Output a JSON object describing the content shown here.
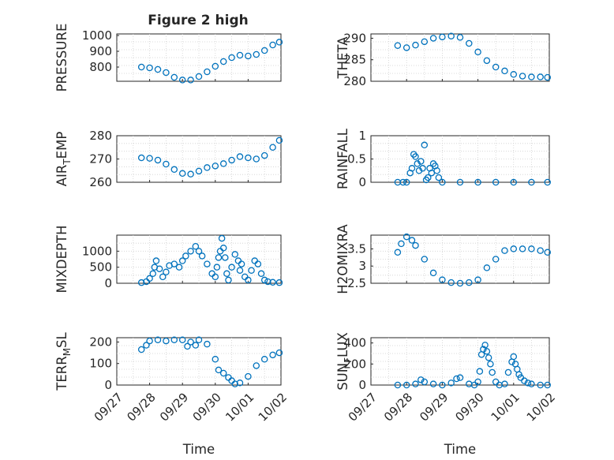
{
  "figure": {
    "title": "Figure 2 high"
  },
  "colors": {
    "marker": "#0072BD",
    "axis": "#262626",
    "grid": "#d9d9d9",
    "background": "#ffffff"
  },
  "chart_data": [
    {
      "type": "scatter",
      "id": "pressure",
      "title": "Figure 2 high",
      "xlabel": "",
      "ylabel": "PRESSURE",
      "xlim": [
        0,
        5
      ],
      "ylim": [
        710,
        1010
      ],
      "yticks": [
        800,
        900,
        1000
      ],
      "ytick_labels": [
        "800",
        "900",
        "1000"
      ],
      "xtick_labels": [],
      "x": [
        0.75,
        1.0,
        1.25,
        1.5,
        1.75,
        2.0,
        2.25,
        2.5,
        2.75,
        3.0,
        3.25,
        3.5,
        3.75,
        4.0,
        4.25,
        4.5,
        4.75,
        4.95
      ],
      "y": [
        800,
        795,
        785,
        765,
        735,
        718,
        718,
        740,
        770,
        805,
        835,
        860,
        875,
        870,
        880,
        905,
        940,
        958
      ]
    },
    {
      "type": "scatter",
      "id": "theta",
      "xlabel": "",
      "ylabel": "THETA",
      "xlim": [
        0,
        5
      ],
      "ylim": [
        280,
        291
      ],
      "yticks": [
        280,
        285,
        290
      ],
      "ytick_labels": [
        "280",
        "285",
        "290"
      ],
      "xtick_labels": [],
      "x": [
        0.75,
        1.0,
        1.25,
        1.5,
        1.75,
        2.0,
        2.25,
        2.5,
        2.75,
        3.0,
        3.25,
        3.5,
        3.75,
        4.0,
        4.25,
        4.5,
        4.75,
        4.95
      ],
      "y": [
        288.3,
        287.8,
        288.4,
        289.2,
        290.0,
        290.3,
        290.5,
        290.2,
        288.8,
        286.8,
        284.8,
        283.3,
        282.4,
        281.6,
        281.2,
        281.0,
        281.0,
        280.9
      ]
    },
    {
      "type": "scatter",
      "id": "air_temp",
      "xlabel": "",
      "ylabel": "AIR_TEMP",
      "ylabel_display": {
        "main": "AIR",
        "sub": "T",
        "rest": "EMP"
      },
      "xlim": [
        0,
        5
      ],
      "ylim": [
        260,
        280
      ],
      "yticks": [
        260,
        270,
        280
      ],
      "ytick_labels": [
        "260",
        "270",
        "280"
      ],
      "xtick_labels": [],
      "x": [
        0.75,
        1.0,
        1.25,
        1.5,
        1.75,
        2.0,
        2.25,
        2.5,
        2.75,
        3.0,
        3.25,
        3.5,
        3.75,
        4.0,
        4.25,
        4.5,
        4.75,
        4.95
      ],
      "y": [
        270.5,
        270.3,
        269.5,
        267.8,
        265.5,
        263.8,
        263.5,
        264.8,
        266.3,
        267.0,
        268.0,
        269.5,
        271.0,
        270.5,
        270.0,
        271.5,
        275.0,
        278.0
      ]
    },
    {
      "type": "scatter",
      "id": "rainfall",
      "xlabel": "",
      "ylabel": "RAINFALL",
      "xlim": [
        0,
        5
      ],
      "ylim": [
        0,
        1
      ],
      "yticks": [
        0,
        0.5,
        1
      ],
      "ytick_labels": [
        "0",
        "0.5",
        "1"
      ],
      "xtick_labels": [],
      "x": [
        0.75,
        0.9,
        1.0,
        1.1,
        1.15,
        1.2,
        1.25,
        1.3,
        1.35,
        1.4,
        1.45,
        1.5,
        1.55,
        1.6,
        1.65,
        1.7,
        1.75,
        1.8,
        1.85,
        1.9,
        2.0,
        2.5,
        3.0,
        3.5,
        4.0,
        4.5,
        4.95
      ],
      "y": [
        0,
        0,
        0,
        0.2,
        0.3,
        0.6,
        0.55,
        0.4,
        0.25,
        0.45,
        0.3,
        0.8,
        0.05,
        0.1,
        0.3,
        0.2,
        0.4,
        0.35,
        0.25,
        0.1,
        0,
        0,
        0,
        0,
        0,
        0,
        0
      ]
    },
    {
      "type": "scatter",
      "id": "mixdepth",
      "xlabel": "",
      "ylabel": "MIXDEPTH",
      "xlim": [
        0,
        5
      ],
      "ylim": [
        0,
        1500
      ],
      "yticks": [
        0,
        500,
        1000
      ],
      "ytick_labels": [
        "0",
        "500",
        "1000"
      ],
      "xtick_labels": [],
      "x": [
        0.75,
        0.9,
        1.0,
        1.1,
        1.15,
        1.2,
        1.3,
        1.4,
        1.5,
        1.6,
        1.75,
        1.9,
        2.0,
        2.1,
        2.25,
        2.4,
        2.5,
        2.6,
        2.75,
        2.9,
        3.0,
        3.05,
        3.1,
        3.15,
        3.2,
        3.25,
        3.3,
        3.35,
        3.4,
        3.5,
        3.6,
        3.7,
        3.75,
        3.8,
        3.9,
        4.0,
        4.1,
        4.2,
        4.3,
        4.4,
        4.5,
        4.6,
        4.75,
        4.95
      ],
      "y": [
        20,
        50,
        150,
        300,
        500,
        700,
        450,
        200,
        350,
        550,
        600,
        500,
        700,
        850,
        1000,
        1150,
        1000,
        850,
        600,
        300,
        200,
        500,
        800,
        1000,
        1400,
        1100,
        800,
        300,
        100,
        500,
        900,
        700,
        400,
        600,
        200,
        100,
        400,
        700,
        600,
        300,
        100,
        50,
        30,
        20
      ]
    },
    {
      "type": "scatter",
      "id": "h2omixra",
      "xlabel": "",
      "ylabel": "H2OMIXRA",
      "xlim": [
        0,
        5
      ],
      "ylim": [
        2.5,
        3.9
      ],
      "yticks": [
        2.5,
        3,
        3.5
      ],
      "ytick_labels": [
        "2.5",
        "3",
        "3.5"
      ],
      "xtick_labels": [],
      "x": [
        0.75,
        0.85,
        1.0,
        1.15,
        1.25,
        1.5,
        1.75,
        2.0,
        2.25,
        2.5,
        2.75,
        3.0,
        3.25,
        3.5,
        3.75,
        4.0,
        4.25,
        4.5,
        4.75,
        4.95
      ],
      "y": [
        3.4,
        3.65,
        3.85,
        3.75,
        3.6,
        3.2,
        2.8,
        2.6,
        2.52,
        2.5,
        2.52,
        2.6,
        2.95,
        3.2,
        3.45,
        3.5,
        3.5,
        3.5,
        3.45,
        3.4
      ]
    },
    {
      "type": "scatter",
      "id": "terr_msl",
      "xlabel": "Time",
      "ylabel": "TERR_MSL",
      "ylabel_display": {
        "main": "TERR",
        "sub": "M",
        "rest": "SL"
      },
      "xlim": [
        0,
        5
      ],
      "ylim": [
        0,
        220
      ],
      "yticks": [
        0,
        100,
        200
      ],
      "ytick_labels": [
        "0",
        "100",
        "200"
      ],
      "xtick_labels": [
        "09/27",
        "09/28",
        "09/29",
        "09/30",
        "10/01",
        "10/02"
      ],
      "x": [
        0.75,
        0.9,
        1.0,
        1.25,
        1.5,
        1.75,
        2.0,
        2.15,
        2.25,
        2.4,
        2.5,
        2.75,
        3.0,
        3.1,
        3.25,
        3.4,
        3.5,
        3.6,
        3.75,
        4.0,
        4.25,
        4.5,
        4.75,
        4.95
      ],
      "y": [
        165,
        185,
        205,
        210,
        205,
        210,
        210,
        180,
        200,
        185,
        210,
        190,
        120,
        70,
        55,
        35,
        20,
        5,
        10,
        40,
        90,
        120,
        140,
        150
      ]
    },
    {
      "type": "scatter",
      "id": "sun_flux",
      "xlabel": "Time",
      "ylabel": "SUN_FLUX",
      "ylabel_display": {
        "main": "SUN",
        "sub": "F",
        "rest": "LUX"
      },
      "xlim": [
        0,
        5
      ],
      "ylim": [
        0,
        450
      ],
      "yticks": [
        0,
        200,
        400
      ],
      "ytick_labels": [
        "0",
        "200",
        "400"
      ],
      "xtick_labels": [
        "09/27",
        "09/28",
        "09/29",
        "09/30",
        "10/01",
        "10/02"
      ],
      "x": [
        0.75,
        1.0,
        1.25,
        1.4,
        1.5,
        1.75,
        2.0,
        2.25,
        2.4,
        2.5,
        2.75,
        2.9,
        3.0,
        3.05,
        3.1,
        3.15,
        3.2,
        3.25,
        3.3,
        3.35,
        3.4,
        3.5,
        3.6,
        3.75,
        3.85,
        3.95,
        4.0,
        4.05,
        4.1,
        4.15,
        4.2,
        4.3,
        4.4,
        4.5,
        4.75,
        4.95
      ],
      "y": [
        0,
        0,
        10,
        50,
        30,
        10,
        0,
        20,
        60,
        70,
        10,
        0,
        30,
        130,
        290,
        340,
        380,
        320,
        260,
        200,
        120,
        30,
        0,
        10,
        120,
        220,
        270,
        200,
        150,
        100,
        70,
        40,
        20,
        10,
        0,
        0
      ]
    }
  ]
}
